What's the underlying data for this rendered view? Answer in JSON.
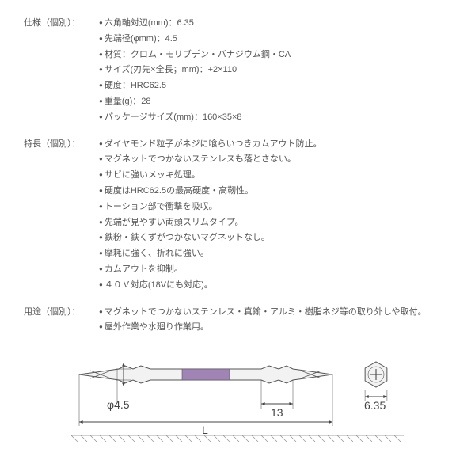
{
  "sections": [
    {
      "label": "仕様（個別）：",
      "items": [
        "六角軸対辺(mm)：6.35",
        "先端径(φmm)：4.5",
        "材質：クロム・モリブデン・バナジウム鋼・CA",
        "サイズ(刃先×全長；mm)：+2×110",
        "硬度：HRC62.5",
        "重量(g)：28",
        "パッケージサイズ(mm)：160×35×8"
      ]
    },
    {
      "label": "特長（個別）：",
      "items": [
        "ダイヤモンド粒子がネジに喰らいつきカムアウト防止。",
        "マグネットでつかないステンレスも落とさない。",
        "サビに強いメッキ処理。",
        "硬度はHRC62.5の最高硬度・高靭性。",
        "トーション部で衝撃を吸収。",
        "先端が見やすい両頭スリムタイプ。",
        "鉄粉・鉄くずがつかないマグネットなし。",
        "摩耗に強く、折れに強い。",
        "カムアウトを抑制。",
        "４０Ｖ対応(18Vにも対応)。"
      ]
    },
    {
      "label": "用途（個別）：",
      "items": [
        "マグネットでつかないステンレス・真鍮・アルミ・樹脂ネジ等の取り外しや取付。",
        "屋外作業や水廻り作業用。"
      ]
    }
  ],
  "diagram": {
    "phi_label": "φ4.5",
    "L_label": "L",
    "seg_label": "13",
    "hex_label": "6.35",
    "colors": {
      "body_fill": "#f2f2f2",
      "body_stroke": "#555",
      "torsion_fill": "#a084b5",
      "dim_line": "#444",
      "hatch": "#888"
    }
  }
}
